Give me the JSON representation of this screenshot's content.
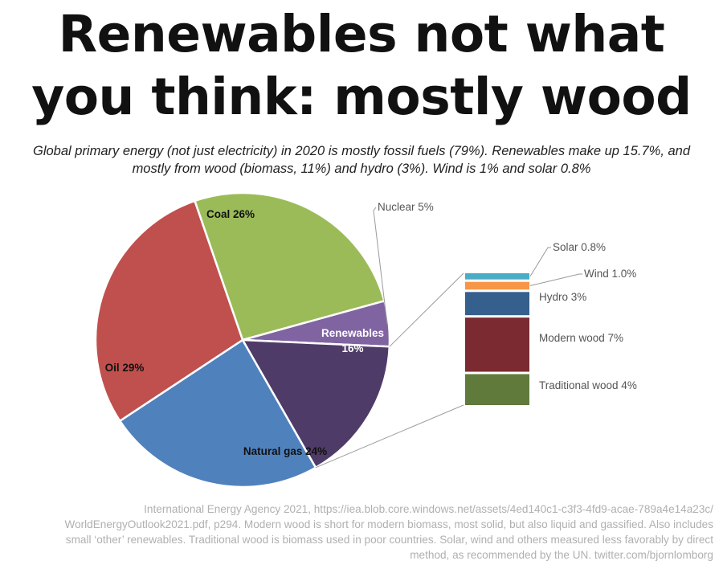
{
  "title": "Renewables not what\nyou think: mostly wood",
  "subtitle": "Global primary energy (not just electricity) in 2020 is mostly fossil fuels (79%). Renewables make up 15.7%, and mostly from wood (biomass, 11%) and hydro (3%). Wind is 1% and solar 0.8%",
  "chart_data": {
    "type": "pie",
    "title": "",
    "slices": [
      {
        "label": "Coal 26%",
        "value": 26,
        "color": "#9BBB59"
      },
      {
        "label": "Nuclear 5%",
        "value": 5,
        "color": "#8064A2"
      },
      {
        "label": "Renewables\n16%",
        "value": 16,
        "color": "#4F3B68"
      },
      {
        "label": "Natural gas 24%",
        "value": 24,
        "color": "#4F81BD"
      },
      {
        "label": "Oil 29%",
        "value": 29,
        "color": "#C0504D"
      }
    ],
    "breakout": {
      "of": "Renewables",
      "type": "stacked-bar",
      "segments": [
        {
          "label": "Solar 0.8%",
          "value": 0.8,
          "color": "#4BACC6"
        },
        {
          "label": "Wind 1.0%",
          "value": 1.0,
          "color": "#F79646"
        },
        {
          "label": "Hydro 3%",
          "value": 3,
          "color": "#355F8D"
        },
        {
          "label": "Modern wood 7%",
          "value": 7,
          "color": "#7A2A30"
        },
        {
          "label": "Traditional wood 4%",
          "value": 4,
          "color": "#5F7A3A"
        }
      ]
    }
  },
  "source": {
    "line1": "International Energy Agency 2021, https://iea.blob.core.windows.net/assets/4ed140c1-c3f3-4fd9-acae-789a4e14a23c/",
    "line2": "WorldEnergyOutlook2021.pdf, p294. Modern wood is short for modern biomass, most solid, but also liquid and gassified. Also includes",
    "line3": "small ‘other’ renewables. Traditional wood is biomass used in poor countries. Solar, wind and others measured less favorably by direct",
    "line4": "method, as recommended by the UN. twitter.com/bjornlomborg"
  }
}
